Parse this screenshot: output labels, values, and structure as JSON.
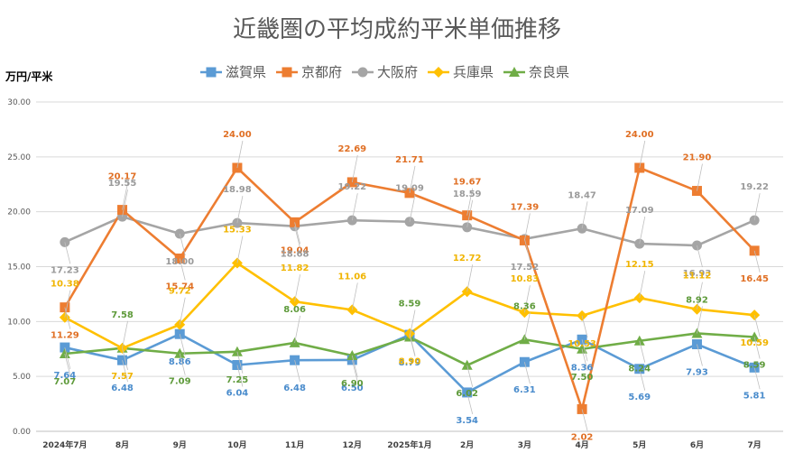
{
  "chart_data": {
    "type": "line",
    "title": "近畿圏の平均成約平米単価推移",
    "ylabel": "万円/平米",
    "xlabel": "",
    "ylim": [
      0,
      30
    ],
    "ytick_labels": [
      "0.00",
      "5.00",
      "10.00",
      "15.00",
      "20.00",
      "25.00",
      "30.00"
    ],
    "grid": true,
    "legend_position": "top",
    "categories": [
      "2024年7月",
      "8月",
      "9月",
      "10月",
      "11月",
      "12月",
      "2025年1月",
      "2月",
      "3月",
      "4月",
      "5月",
      "6月",
      "7月"
    ],
    "series": [
      {
        "name": "滋賀県",
        "color": "#5B9BD5",
        "marker": "square",
        "values": [
          7.64,
          6.48,
          8.86,
          6.04,
          6.48,
          6.5,
          8.79,
          3.54,
          6.31,
          8.36,
          5.69,
          7.93,
          5.81
        ]
      },
      {
        "name": "京都府",
        "color": "#ED7D31",
        "marker": "square",
        "values": [
          11.29,
          20.17,
          15.74,
          24.0,
          19.04,
          22.69,
          21.71,
          19.67,
          17.39,
          2.02,
          24.0,
          21.9,
          16.45
        ]
      },
      {
        "name": "大阪府",
        "color": "#A5A5A5",
        "marker": "circle",
        "values": [
          17.23,
          19.55,
          18.0,
          18.98,
          18.68,
          19.22,
          19.09,
          18.59,
          17.52,
          18.47,
          17.09,
          16.93,
          19.22
        ]
      },
      {
        "name": "兵庫県",
        "color": "#FFC000",
        "marker": "diamond",
        "values": [
          10.38,
          7.57,
          9.72,
          15.33,
          11.82,
          11.06,
          8.9,
          12.72,
          10.83,
          10.53,
          12.15,
          11.12,
          10.59
        ]
      },
      {
        "name": "奈良県",
        "color": "#70AD47",
        "marker": "triangle",
        "values": [
          7.07,
          7.58,
          7.09,
          7.25,
          8.06,
          6.9,
          8.59,
          6.02,
          8.36,
          7.5,
          8.24,
          8.92,
          8.59
        ]
      }
    ]
  }
}
